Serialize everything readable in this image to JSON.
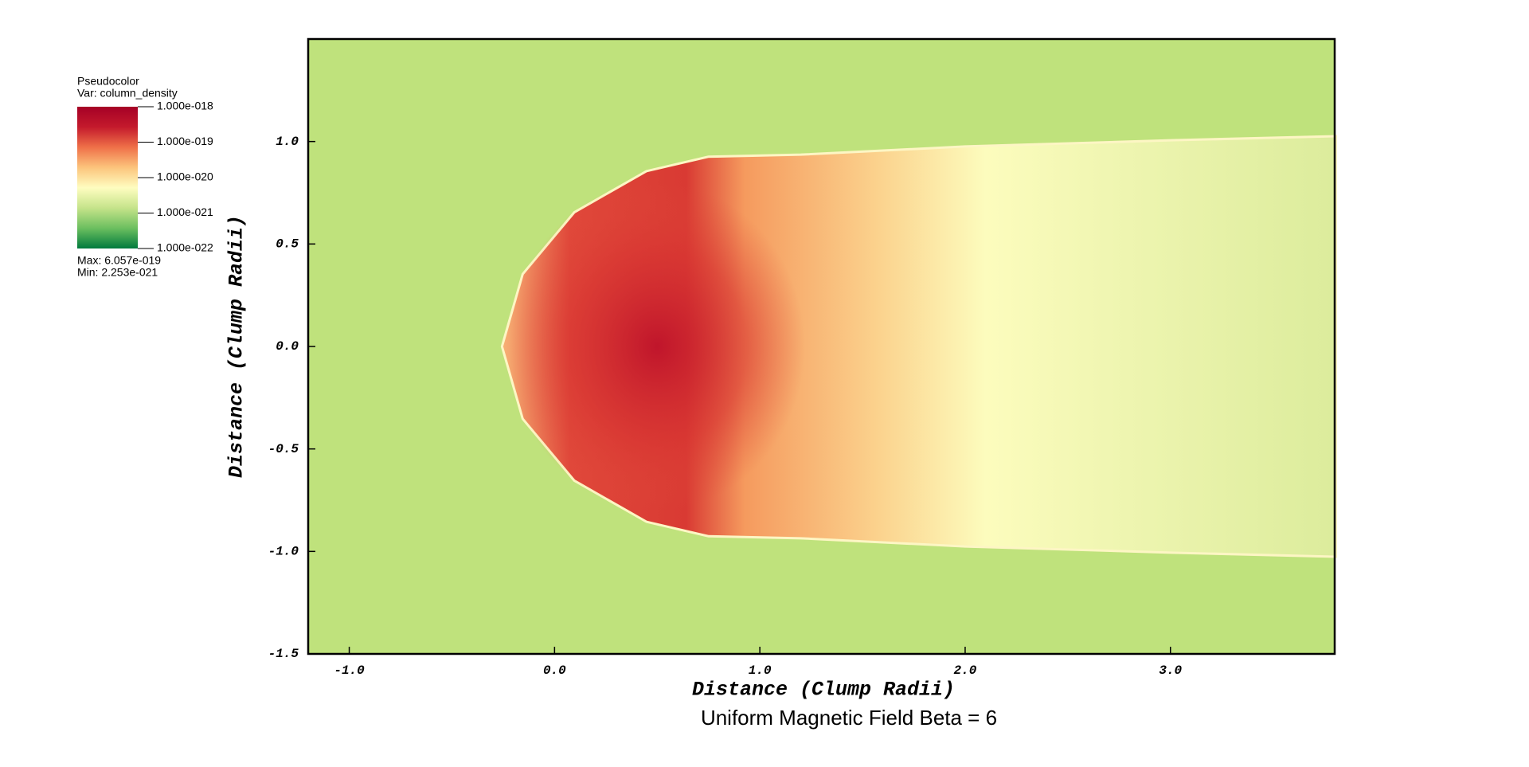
{
  "chart_data": {
    "type": "pseudocolor",
    "title": "Uniform Magnetic Field Beta = 6",
    "x_label": "Distance (Clump Radii)",
    "y_label": "Distance (Clump Radii)",
    "xlim": [
      -1.2,
      3.8
    ],
    "ylim": [
      -1.5,
      1.5
    ],
    "xticks": [
      {
        "value": -1,
        "label": "-1.0"
      },
      {
        "value": 0,
        "label": "0.0"
      },
      {
        "value": 1,
        "label": "1.0"
      },
      {
        "value": 2,
        "label": "2.0"
      },
      {
        "value": 3,
        "label": "3.0"
      }
    ],
    "yticks": [
      -1.5,
      {
        "value": -1,
        "label": "-1.0"
      },
      -0.5,
      {
        "value": 0,
        "label": "0.0"
      },
      0.5,
      {
        "value": 1,
        "label": "1.0"
      }
    ],
    "legend": {
      "plot_name": "Pseudocolor",
      "variable": "Var: column_density",
      "scale": "log",
      "clim": [
        1e-22,
        1e-18
      ],
      "colors": [
        "#007a3d",
        "#6cbf5f",
        "#c5e38a",
        "#fefdc0",
        "#fcc47c",
        "#ef7048",
        "#c41a2c",
        "#a50026"
      ],
      "ticks": [
        {
          "value": 1e-18,
          "label": "1.000e-018"
        },
        {
          "value": 1e-19,
          "label": "1.000e-019"
        },
        {
          "value": 1e-20,
          "label": "1.000e-020"
        },
        {
          "value": 1e-21,
          "label": "1.000e-021"
        },
        {
          "value": 1e-22,
          "label": "1.000e-022"
        }
      ],
      "max_text": "Max:  6.057e-019",
      "min_text": "Min:  2.253e-021"
    }
  }
}
